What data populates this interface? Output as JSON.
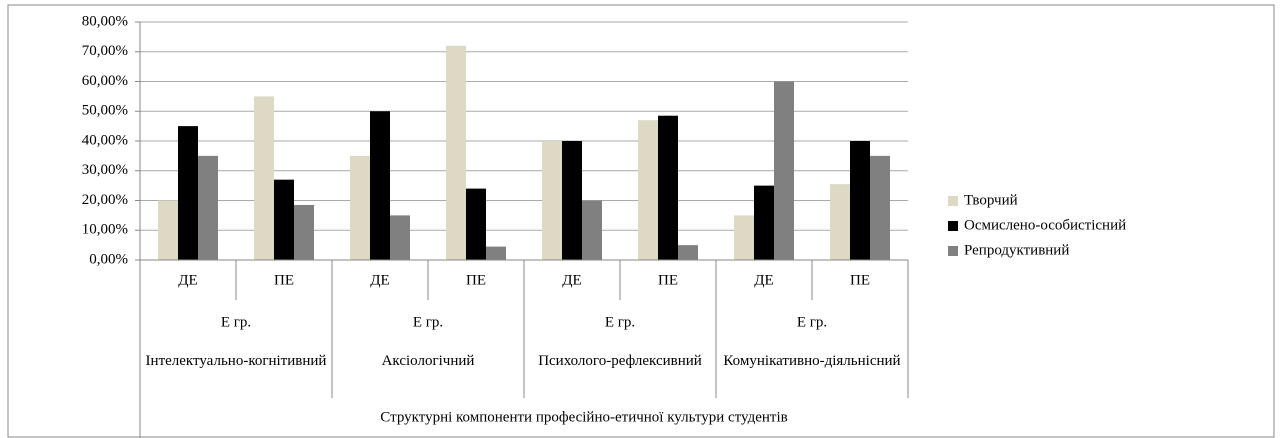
{
  "chart_data": {
    "type": "bar",
    "categories": [
      "ДЕ",
      "ПЕ",
      "ДЕ",
      "ПЕ",
      "ДЕ",
      "ПЕ",
      "ДЕ",
      "ПЕ"
    ],
    "groups": [
      {
        "label": "Е гр.",
        "name": "Інтелектуально-когнітивний"
      },
      {
        "label": "Е гр.",
        "name": "Аксіологічний"
      },
      {
        "label": "Е гр.",
        "name": "Психолого-рефлексивний"
      },
      {
        "label": "Е гр.",
        "name": "Комунікативно-діяльнісний"
      }
    ],
    "x_label": "Структурні компоненти професійно-етичної культури студентів",
    "series": [
      {
        "name": "Творчий",
        "color": "#ddd9c4",
        "values": [
          20,
          55,
          35,
          72,
          40,
          47,
          15,
          25.5
        ]
      },
      {
        "name": "Осмислено-особистісний",
        "color": "#000000",
        "values": [
          45,
          27,
          50,
          24,
          40,
          48.5,
          25,
          40
        ]
      },
      {
        "name": "Репродуктивний",
        "color": "#808080",
        "values": [
          35,
          18.5,
          15,
          4.5,
          20,
          5,
          60,
          35
        ]
      }
    ],
    "ylim": [
      0,
      80
    ],
    "yticks": [
      {
        "value": 0,
        "label": "0,00%"
      },
      {
        "value": 10,
        "label": "10,00%"
      },
      {
        "value": 20,
        "label": "20,00%"
      },
      {
        "value": 30,
        "label": "30,00%"
      },
      {
        "value": 40,
        "label": "40,00%"
      },
      {
        "value": 50,
        "label": "50,00%"
      },
      {
        "value": 60,
        "label": "60,00%"
      },
      {
        "value": 70,
        "label": "70,00%"
      },
      {
        "value": 80,
        "label": "80,00%"
      }
    ],
    "grid": true,
    "legend": "right"
  }
}
